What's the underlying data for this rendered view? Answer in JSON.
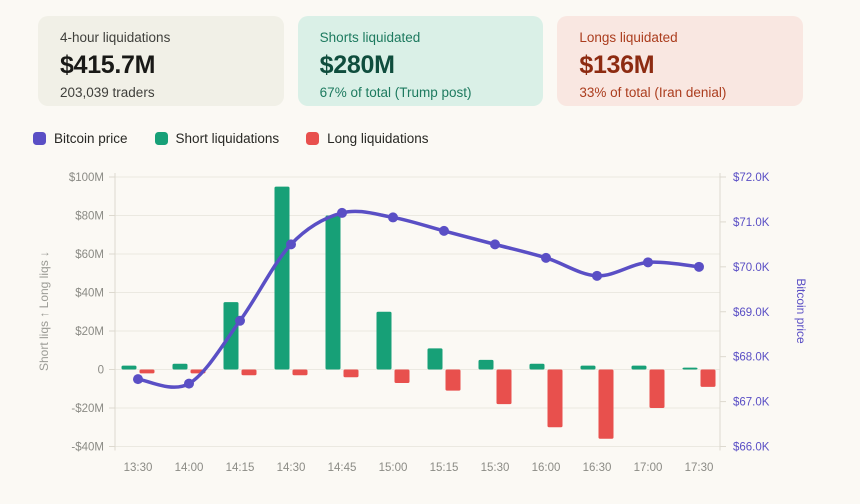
{
  "page": {
    "background": "#fbf9f4"
  },
  "cards": [
    {
      "label": "4-hour liquidations",
      "value": "$415.7M",
      "sub": "203,039 traders",
      "bg": "#f1f0e7"
    },
    {
      "label": "Shorts liquidated",
      "value": "$280M",
      "sub": "67% of total (Trump post)",
      "bg": "#daf0e7"
    },
    {
      "label": "Longs liquidated",
      "value": "$136M",
      "sub": "33% of total (Iran denial)",
      "bg": "#f9e7e1"
    }
  ],
  "legend": [
    {
      "label": "Bitcoin price",
      "color": "#5a4fc5"
    },
    {
      "label": "Short liquidations",
      "color": "#17a077"
    },
    {
      "label": "Long liquidations",
      "color": "#e8504d"
    }
  ],
  "chart_data": {
    "type": "bar+line combo",
    "categories": [
      "13:30",
      "14:00",
      "14:15",
      "14:30",
      "14:45",
      "15:00",
      "15:15",
      "15:30",
      "16:00",
      "16:30",
      "17:00",
      "17:30"
    ],
    "series": [
      {
        "name": "Short liquidations",
        "type": "bar",
        "axis": "left",
        "color": "#17a077",
        "values": [
          2,
          3,
          35,
          95,
          80,
          30,
          11,
          5,
          3,
          2,
          2,
          1
        ]
      },
      {
        "name": "Long liquidations",
        "type": "bar",
        "axis": "left",
        "color": "#e8504d",
        "values": [
          -2,
          -2,
          -3,
          -3,
          -4,
          -7,
          -11,
          -18,
          -30,
          -36,
          -20,
          -9
        ]
      },
      {
        "name": "Bitcoin price",
        "type": "line",
        "axis": "right",
        "color": "#5a4fc5",
        "values": [
          67500,
          67400,
          68800,
          70500,
          71200,
          71100,
          70800,
          70500,
          70200,
          69800,
          70100,
          70000
        ]
      }
    ],
    "left_axis": {
      "title": "Short liqs ↑  Long liqs ↓",
      "unit": "M USD",
      "range": [
        -40,
        100
      ],
      "tick_values": [
        100,
        80,
        60,
        40,
        20,
        0,
        -20,
        -40
      ],
      "tick_labels": [
        "$100M",
        "$80M",
        "$60M",
        "$40M",
        "$20M",
        "0",
        "-$20M",
        "-$40M"
      ],
      "color": "#8b8b85",
      "title_color": "#9b9b95"
    },
    "right_axis": {
      "title": "Bitcoin price",
      "unit": "USD",
      "range": [
        66000,
        72000
      ],
      "tick_values": [
        72000,
        71000,
        70000,
        69000,
        68000,
        67000,
        66000
      ],
      "tick_labels": [
        "$72.0K",
        "$71.0K",
        "$70.0K",
        "$69.0K",
        "$68.0K",
        "$67.0K",
        "$66.0K"
      ],
      "color": "#5a4fc5",
      "title_color": "#5a4fc5"
    },
    "grid": true,
    "grid_color": "#ebe9e1",
    "border_color": "#ddd9cf",
    "tick_label_color": "#8b8b85",
    "legend_position": "top-left"
  }
}
